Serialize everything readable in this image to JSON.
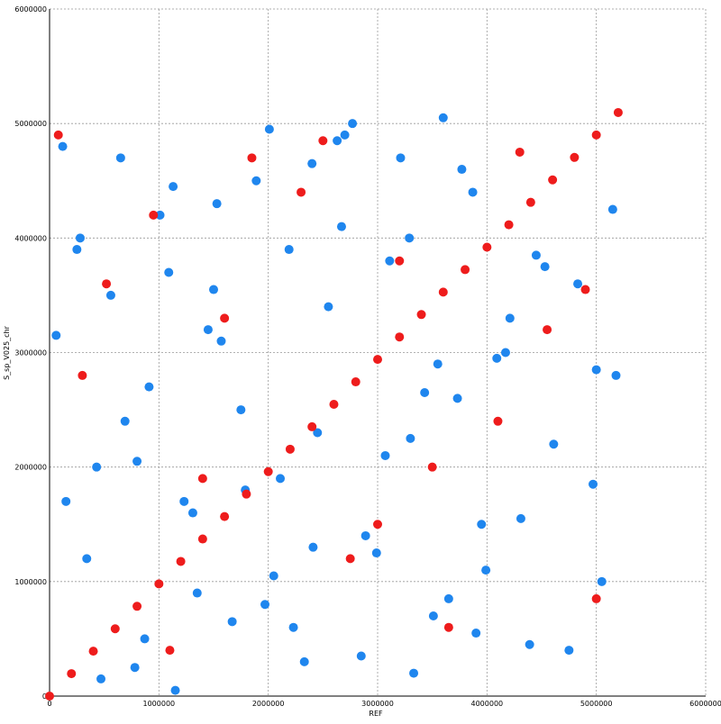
{
  "chart_data": {
    "type": "scatter",
    "xlabel": "REF",
    "ylabel": "S_sp_V025_chr",
    "xlim": [
      0,
      6000000
    ],
    "ylim": [
      0,
      6000000
    ],
    "xticks": [
      0,
      1000000,
      2000000,
      3000000,
      4000000,
      5000000,
      6000000
    ],
    "yticks": [
      0,
      1000000,
      2000000,
      3000000,
      4000000,
      5000000,
      6000000
    ],
    "grid": true,
    "series": [
      {
        "color": "#1f86ee",
        "x": [
          120000,
          340000,
          560000,
          780000,
          910000,
          1130000,
          1350000,
          1570000,
          1790000,
          2010000,
          2230000,
          2450000,
          2670000,
          2890000,
          3110000,
          3330000,
          3550000,
          3770000,
          3990000,
          4210000,
          430000,
          650000,
          870000,
          1090000,
          1310000,
          1530000,
          1750000,
          1970000,
          2190000,
          2410000,
          2630000,
          2850000,
          3070000,
          3290000,
          3510000,
          3730000,
          3950000,
          4170000,
          4390000,
          4610000,
          4830000,
          5050000,
          5180000,
          250000,
          470000,
          690000,
          1010000,
          1230000,
          1450000,
          1670000,
          1890000,
          2110000,
          2330000,
          2550000,
          2770000,
          2990000,
          3210000,
          3430000,
          3650000,
          3870000,
          4090000,
          4310000,
          4530000,
          4750000,
          4970000,
          5150000,
          60000,
          280000,
          800000,
          1500000,
          2050000,
          2700000,
          3300000,
          3900000,
          4450000,
          5000000,
          150000,
          1150000,
          2400000,
          3600000
        ],
        "y": [
          4800000,
          1200000,
          3500000,
          250000,
          2700000,
          4450000,
          900000,
          3100000,
          1800000,
          4950000,
          600000,
          2300000,
          4100000,
          1400000,
          3800000,
          200000,
          2900000,
          4600000,
          1100000,
          3300000,
          2000000,
          4700000,
          500000,
          3700000,
          1600000,
          4300000,
          2500000,
          800000,
          3900000,
          1300000,
          4850000,
          350000,
          2100000,
          4000000,
          700000,
          2600000,
          1500000,
          3000000,
          450000,
          2200000,
          3600000,
          1000000,
          2800000,
          3900000,
          150000,
          2400000,
          4200000,
          1700000,
          3200000,
          650000,
          4500000,
          1900000,
          300000,
          3400000,
          5000000,
          1250000,
          4700000,
          2650000,
          850000,
          4400000,
          2950000,
          1550000,
          3750000,
          400000,
          1850000,
          4250000,
          3150000,
          4000000,
          2050000,
          3550000,
          1050000,
          4900000,
          2250000,
          550000,
          3850000,
          2850000,
          1700000,
          50000,
          4650000,
          5050000
        ]
      },
      {
        "color": "#ee1c1c",
        "x": [
          80000,
          520000,
          950000,
          1400000,
          1850000,
          2300000,
          2750000,
          3200000,
          3650000,
          4100000,
          4550000,
          5000000,
          300000,
          1100000,
          1600000,
          2500000,
          3000000,
          3500000,
          4300000,
          4900000,
          0,
          200000,
          400000,
          600000,
          800000,
          1000000,
          1200000,
          1400000,
          1600000,
          1800000,
          2000000,
          2200000,
          2400000,
          2600000,
          2800000,
          3000000,
          3200000,
          3400000,
          3600000,
          3800000,
          4000000,
          4200000,
          4400000,
          4600000,
          4800000,
          5000000,
          5200000
        ],
        "y": [
          4900000,
          3600000,
          4200000,
          1900000,
          4700000,
          4400000,
          1200000,
          3800000,
          600000,
          2400000,
          3200000,
          850000,
          2800000,
          400000,
          3300000,
          4850000,
          1500000,
          2000000,
          4750000,
          3550000,
          0,
          196000,
          392000,
          588000,
          784000,
          980000,
          1176000,
          1372000,
          1568000,
          1764000,
          1960000,
          2156000,
          2352000,
          2548000,
          2744000,
          2940000,
          3136000,
          3332000,
          3528000,
          3724000,
          3920000,
          4116000,
          4312000,
          4508000,
          4704000,
          4900000,
          5096000
        ]
      }
    ]
  }
}
